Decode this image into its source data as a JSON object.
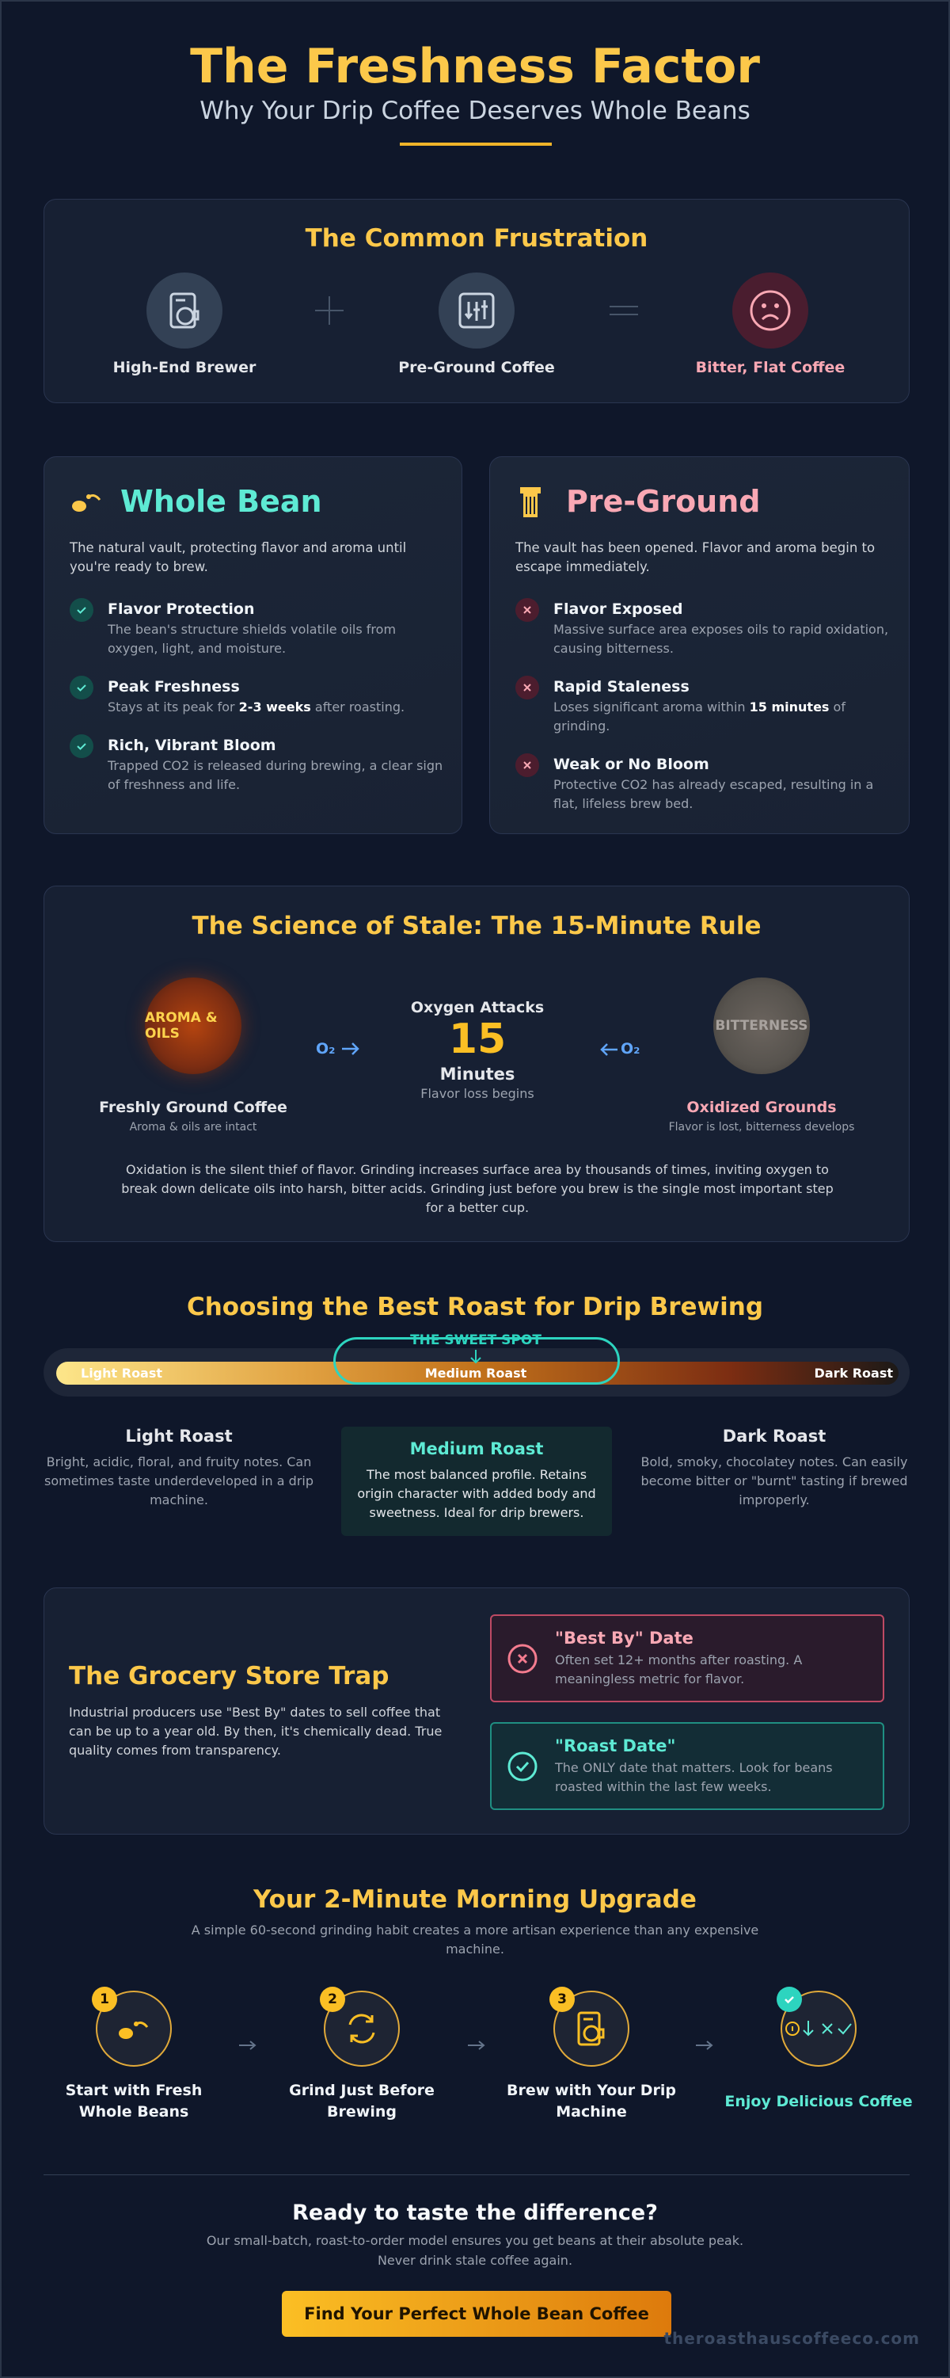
{
  "header": {
    "title": "The Freshness Factor",
    "subtitle": "Why Your Drip Coffee Deserves Whole Beans"
  },
  "frustration": {
    "title": "The Common Frustration",
    "items": [
      "High-End Brewer",
      "Pre-Ground Coffee",
      "Bitter, Flat Coffee"
    ]
  },
  "comparison": [
    {
      "title": "Whole Bean",
      "intro": "The natural vault, protecting flavor and aroma until you're ready to brew.",
      "items": [
        {
          "title": "Flavor Protection",
          "desc": [
            "The bean's structure shields volatile oils from oxygen, light, and moisture."
          ]
        },
        {
          "title": "Peak Freshness",
          "desc": [
            "Stays at its peak for ",
            "2-3 weeks",
            " after roasting."
          ]
        },
        {
          "title": "Rich, Vibrant Bloom",
          "desc": [
            "Trapped CO2 is released during brewing, a clear sign of freshness and life."
          ]
        }
      ]
    },
    {
      "title": "Pre-Ground",
      "intro": "The vault has been opened. Flavor and aroma begin to escape immediately.",
      "items": [
        {
          "title": "Flavor Exposed",
          "desc": [
            "Massive surface area exposes oils to rapid oxidation, causing bitterness."
          ]
        },
        {
          "title": "Rapid Staleness",
          "desc": [
            "Loses significant aroma within ",
            "15 minutes",
            " of grinding."
          ]
        },
        {
          "title": "Weak or No Bloom",
          "desc": [
            "Protective CO2 has already escaped, resulting in a flat, lifeless brew bed."
          ]
        }
      ]
    }
  ],
  "science": {
    "title": "The Science of Stale: The 15-Minute Rule",
    "fresh": {
      "circle": "AROMA & OILS",
      "label": "Freshly Ground Coffee",
      "sub": "Aroma & oils are intact"
    },
    "stale": {
      "circle": "BITTERNESS",
      "label": "Oxidized Grounds",
      "sub": "Flavor is lost, bitterness develops"
    },
    "oxygen": "O₂",
    "attack": {
      "heading": "Oxygen Attacks",
      "number": 15,
      "unit": "Minutes",
      "note": "Flavor loss begins"
    },
    "paragraph": "Oxidation is the silent thief of flavor. Grinding increases surface area by thousands of times, inviting oxygen to break down delicate oils into harsh, bitter acids. Grinding just before you brew is the single most important step for a better cup."
  },
  "roast": {
    "title": "Choosing the Best Roast for Drip Brewing",
    "sweet_spot": "THE SWEET SPOT",
    "options": [
      {
        "name": "Light Roast",
        "desc": "Bright, acidic, floral, and fruity notes. Can sometimes taste underdeveloped in a drip machine."
      },
      {
        "name": "Medium Roast",
        "desc": "The most balanced profile. Retains origin character with added body and sweetness. Ideal for drip brewers."
      },
      {
        "name": "Dark Roast",
        "desc": "Bold, smoky, chocolatey notes. Can easily become bitter or \"burnt\" tasting if brewed improperly."
      }
    ]
  },
  "grocery": {
    "title": "The Grocery Store Trap",
    "paragraph": "Industrial producers use \"Best By\" dates to sell coffee that can be up to a year old. By then, it's chemically dead. True quality comes from transparency.",
    "dates": [
      {
        "title": "\"Best By\" Date",
        "desc": "Often set 12+ months after roasting. A meaningless metric for flavor."
      },
      {
        "title": "\"Roast Date\"",
        "desc": "The ONLY date that matters. Look for beans roasted within the last few weeks."
      }
    ]
  },
  "upgrade": {
    "title": "Your 2-Minute Morning Upgrade",
    "subtitle": "A simple 60-second grinding habit creates a more artisan experience than any expensive machine.",
    "steps": [
      {
        "number": 1,
        "label": "Start with Fresh Whole Beans"
      },
      {
        "number": 2,
        "label": "Grind Just Before Brewing"
      },
      {
        "number": 3,
        "label": "Brew with Your Drip Machine"
      },
      {
        "label": "Enjoy Delicious Coffee"
      }
    ]
  },
  "cta": {
    "title": "Ready to taste the difference?",
    "text": [
      "Our small-batch, roast-to-order model ensures you get beans at their absolute peak.",
      "Never drink stale coffee again."
    ],
    "button": "Find Your Perfect Whole Bean Coffee",
    "website": "theroasthauscoffeeco.com"
  }
}
